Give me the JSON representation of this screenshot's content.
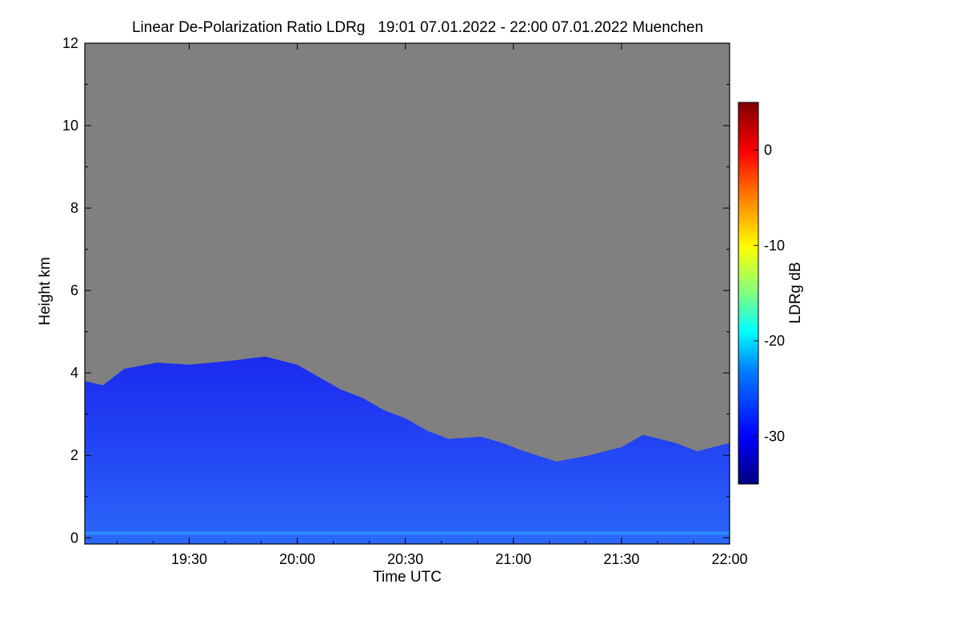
{
  "chart_data": {
    "type": "heatmap",
    "title": "Linear De-Polarization Ratio LDRg   19:01 07.01.2022 - 22:00 07.01.2022 Muenchen",
    "xlabel": "Time UTC",
    "ylabel": "Height km",
    "x_range_hours_utc": [
      19.017,
      22.0
    ],
    "x_ticks": [
      {
        "label": "19:30",
        "value": 19.5
      },
      {
        "label": "20:00",
        "value": 20.0
      },
      {
        "label": "20:30",
        "value": 20.5
      },
      {
        "label": "21:00",
        "value": 21.0
      },
      {
        "label": "21:30",
        "value": 21.5
      },
      {
        "label": "22:00",
        "value": 22.0
      }
    ],
    "y_range_km": [
      -0.15,
      12.0
    ],
    "y_ticks": [
      {
        "label": "0",
        "value": 0
      },
      {
        "label": "2",
        "value": 2
      },
      {
        "label": "4",
        "value": 4
      },
      {
        "label": "6",
        "value": 6
      },
      {
        "label": "8",
        "value": 8
      },
      {
        "label": "10",
        "value": 10
      },
      {
        "label": "12",
        "value": 12
      }
    ],
    "colorbar": {
      "label": "LDRg dB",
      "range_db": [
        -35,
        5
      ],
      "ticks": [
        {
          "label": "0",
          "value": 0
        },
        {
          "label": "-10",
          "value": -10
        },
        {
          "label": "-20",
          "value": -20
        },
        {
          "label": "-30",
          "value": -30
        }
      ],
      "colormap": [
        "#00007f",
        "#0000ff",
        "#0080ff",
        "#00ffff",
        "#80ff80",
        "#ffff00",
        "#ff8000",
        "#ff0000",
        "#7f0000"
      ]
    },
    "no_data_color": "#808080",
    "signal_top_km": [
      [
        19.02,
        3.8
      ],
      [
        19.1,
        3.7
      ],
      [
        19.2,
        4.1
      ],
      [
        19.35,
        4.25
      ],
      [
        19.5,
        4.2
      ],
      [
        19.7,
        4.3
      ],
      [
        19.85,
        4.4
      ],
      [
        20.0,
        4.2
      ],
      [
        20.1,
        3.9
      ],
      [
        20.2,
        3.6
      ],
      [
        20.3,
        3.4
      ],
      [
        20.4,
        3.1
      ],
      [
        20.5,
        2.9
      ],
      [
        20.6,
        2.6
      ],
      [
        20.7,
        2.4
      ],
      [
        20.85,
        2.45
      ],
      [
        20.95,
        2.3
      ],
      [
        21.05,
        2.1
      ],
      [
        21.2,
        1.85
      ],
      [
        21.35,
        2.0
      ],
      [
        21.5,
        2.2
      ],
      [
        21.6,
        2.5
      ],
      [
        21.75,
        2.3
      ],
      [
        21.85,
        2.1
      ],
      [
        22.0,
        2.3
      ]
    ],
    "typical_ldr_db": -30
  }
}
